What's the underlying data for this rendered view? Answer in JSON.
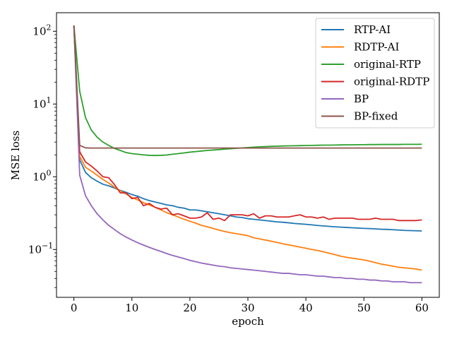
{
  "chart_data": {
    "type": "line",
    "xlabel": "epoch",
    "ylabel": "MSE loss",
    "xlim": [
      -3,
      63
    ],
    "ylim": [
      0.022,
      180
    ],
    "yscale": "log",
    "grid": false,
    "legend_position": "top-right",
    "x_ticks": [
      0,
      10,
      20,
      30,
      40,
      50,
      60
    ],
    "x_tick_labels": [
      "0",
      "10",
      "20",
      "30",
      "40",
      "50",
      "60"
    ],
    "y_ticks": [
      0.1,
      1,
      10,
      100
    ],
    "y_tick_labels": [
      "10",
      "10",
      "10",
      "10"
    ],
    "y_tick_exponents": [
      "−1",
      "0",
      "1",
      "2"
    ],
    "x": [
      0,
      1,
      2,
      3,
      4,
      5,
      6,
      7,
      8,
      9,
      10,
      11,
      12,
      13,
      14,
      15,
      16,
      17,
      18,
      19,
      20,
      21,
      22,
      23,
      24,
      25,
      26,
      27,
      28,
      29,
      30,
      31,
      32,
      33,
      34,
      35,
      36,
      37,
      38,
      39,
      40,
      41,
      42,
      43,
      44,
      45,
      46,
      47,
      48,
      49,
      50,
      51,
      52,
      53,
      54,
      55,
      56,
      57,
      58,
      59,
      60
    ],
    "series": [
      {
        "name": "RTP-AI",
        "color": "#1f77b4",
        "values": [
          120,
          1.7,
          1.15,
          0.97,
          0.87,
          0.79,
          0.75,
          0.7,
          0.65,
          0.61,
          0.57,
          0.54,
          0.5,
          0.47,
          0.45,
          0.43,
          0.41,
          0.4,
          0.38,
          0.37,
          0.35,
          0.35,
          0.34,
          0.33,
          0.32,
          0.31,
          0.3,
          0.29,
          0.28,
          0.275,
          0.265,
          0.26,
          0.255,
          0.25,
          0.245,
          0.24,
          0.237,
          0.233,
          0.228,
          0.225,
          0.222,
          0.218,
          0.214,
          0.211,
          0.208,
          0.205,
          0.203,
          0.201,
          0.199,
          0.197,
          0.195,
          0.194,
          0.192,
          0.19,
          0.189,
          0.187,
          0.185,
          0.183,
          0.182,
          0.181,
          0.18
        ]
      },
      {
        "name": "RDTP-AI",
        "color": "#ff7f0e",
        "values": [
          120,
          1.9,
          1.35,
          1.2,
          1.05,
          0.92,
          0.82,
          0.72,
          0.64,
          0.58,
          0.52,
          0.48,
          0.44,
          0.41,
          0.38,
          0.35,
          0.32,
          0.3,
          0.28,
          0.26,
          0.245,
          0.23,
          0.215,
          0.205,
          0.195,
          0.185,
          0.177,
          0.17,
          0.165,
          0.16,
          0.155,
          0.145,
          0.14,
          0.135,
          0.13,
          0.125,
          0.12,
          0.116,
          0.112,
          0.108,
          0.104,
          0.1,
          0.097,
          0.093,
          0.089,
          0.085,
          0.081,
          0.078,
          0.076,
          0.074,
          0.072,
          0.069,
          0.066,
          0.063,
          0.061,
          0.059,
          0.057,
          0.056,
          0.055,
          0.054,
          0.052
        ]
      },
      {
        "name": "original-RTP",
        "color": "#2ca02c",
        "values": [
          120,
          15,
          6.5,
          4.4,
          3.5,
          3.0,
          2.7,
          2.45,
          2.3,
          2.15,
          2.08,
          2.04,
          2.0,
          1.97,
          1.96,
          1.97,
          1.99,
          2.04,
          2.08,
          2.13,
          2.18,
          2.22,
          2.26,
          2.3,
          2.33,
          2.36,
          2.4,
          2.43,
          2.46,
          2.49,
          2.52,
          2.55,
          2.58,
          2.6,
          2.62,
          2.63,
          2.65,
          2.66,
          2.67,
          2.68,
          2.69,
          2.7,
          2.71,
          2.72,
          2.72,
          2.73,
          2.74,
          2.75,
          2.75,
          2.76,
          2.76,
          2.77,
          2.77,
          2.78,
          2.78,
          2.78,
          2.78,
          2.79,
          2.79,
          2.79,
          2.8
        ]
      },
      {
        "name": "original-RDTP",
        "color": "#d62728",
        "values": [
          120,
          2.2,
          1.6,
          1.4,
          1.2,
          1.0,
          0.97,
          0.78,
          0.6,
          0.6,
          0.5,
          0.52,
          0.4,
          0.43,
          0.38,
          0.36,
          0.37,
          0.3,
          0.31,
          0.29,
          0.27,
          0.27,
          0.28,
          0.32,
          0.26,
          0.27,
          0.25,
          0.3,
          0.3,
          0.3,
          0.29,
          0.31,
          0.27,
          0.29,
          0.29,
          0.28,
          0.28,
          0.28,
          0.29,
          0.3,
          0.28,
          0.28,
          0.27,
          0.28,
          0.26,
          0.27,
          0.27,
          0.27,
          0.27,
          0.26,
          0.26,
          0.26,
          0.27,
          0.26,
          0.26,
          0.26,
          0.25,
          0.25,
          0.25,
          0.25,
          0.255
        ]
      },
      {
        "name": "BP",
        "color": "#9467bd",
        "values": [
          120,
          1.05,
          0.55,
          0.4,
          0.31,
          0.255,
          0.215,
          0.188,
          0.165,
          0.148,
          0.135,
          0.124,
          0.115,
          0.107,
          0.1,
          0.094,
          0.088,
          0.083,
          0.079,
          0.075,
          0.071,
          0.068,
          0.065,
          0.063,
          0.061,
          0.059,
          0.058,
          0.056,
          0.055,
          0.054,
          0.053,
          0.052,
          0.051,
          0.05,
          0.049,
          0.048,
          0.047,
          0.047,
          0.046,
          0.045,
          0.045,
          0.044,
          0.043,
          0.043,
          0.042,
          0.041,
          0.041,
          0.04,
          0.04,
          0.039,
          0.039,
          0.038,
          0.038,
          0.037,
          0.037,
          0.036,
          0.036,
          0.036,
          0.035,
          0.035,
          0.035
        ]
      },
      {
        "name": "BP-fixed",
        "color": "#8c564b",
        "values": [
          120,
          2.7,
          2.5,
          2.48,
          2.48,
          2.48,
          2.48,
          2.48,
          2.48,
          2.48,
          2.48,
          2.48,
          2.48,
          2.48,
          2.48,
          2.48,
          2.48,
          2.48,
          2.48,
          2.48,
          2.48,
          2.48,
          2.48,
          2.48,
          2.48,
          2.48,
          2.48,
          2.48,
          2.48,
          2.48,
          2.48,
          2.48,
          2.48,
          2.48,
          2.48,
          2.48,
          2.48,
          2.48,
          2.48,
          2.48,
          2.48,
          2.48,
          2.48,
          2.48,
          2.48,
          2.48,
          2.48,
          2.48,
          2.48,
          2.48,
          2.48,
          2.48,
          2.48,
          2.48,
          2.48,
          2.48,
          2.48,
          2.48,
          2.48,
          2.48,
          2.48
        ]
      }
    ]
  }
}
